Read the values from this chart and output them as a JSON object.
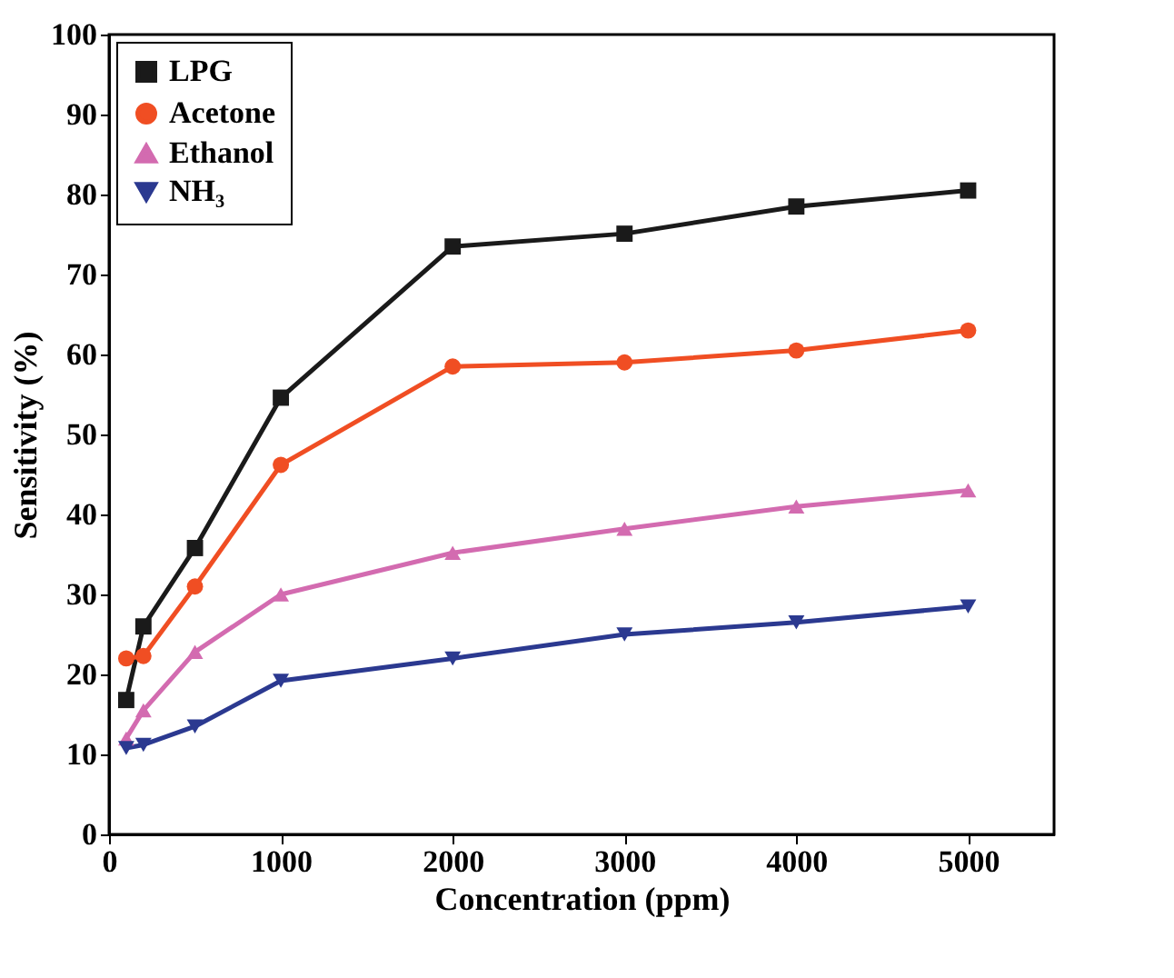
{
  "chart_data": {
    "type": "line",
    "xlabel": "Concentration (ppm)",
    "ylabel": "Sensitivity (%)",
    "x": [
      100,
      200,
      500,
      1000,
      2000,
      3000,
      4000,
      5000
    ],
    "series": [
      {
        "name": "LPG",
        "color": "#1a1a1a",
        "marker": "square",
        "values": [
          16.8,
          26,
          35.8,
          54.6,
          73.5,
          75.1,
          78.5,
          80.5
        ]
      },
      {
        "name": "Acetone",
        "color": "#f04e23",
        "marker": "circle",
        "values": [
          22,
          22.3,
          31,
          46.2,
          58.5,
          59,
          60.5,
          63
        ]
      },
      {
        "name": "Ethanol",
        "color": "#d36bb0",
        "marker": "triangle",
        "values": [
          12,
          15.5,
          22.8,
          30,
          35.2,
          38.2,
          41,
          43
        ]
      },
      {
        "name": "NH₃",
        "color": "#2b3990",
        "marker": "triangle-down",
        "values": [
          10.8,
          11.2,
          13.5,
          19.2,
          22,
          25,
          26.5,
          28.5
        ]
      }
    ],
    "xlim": [
      0,
      5500
    ],
    "xticks": [
      0,
      1000,
      2000,
      3000,
      4000,
      5000
    ],
    "ylim": [
      0,
      100
    ],
    "yticks": [
      0,
      10,
      20,
      30,
      40,
      50,
      60,
      70,
      80,
      90,
      100
    ],
    "grid": false,
    "legend": "top left",
    "line_style": "solid"
  }
}
